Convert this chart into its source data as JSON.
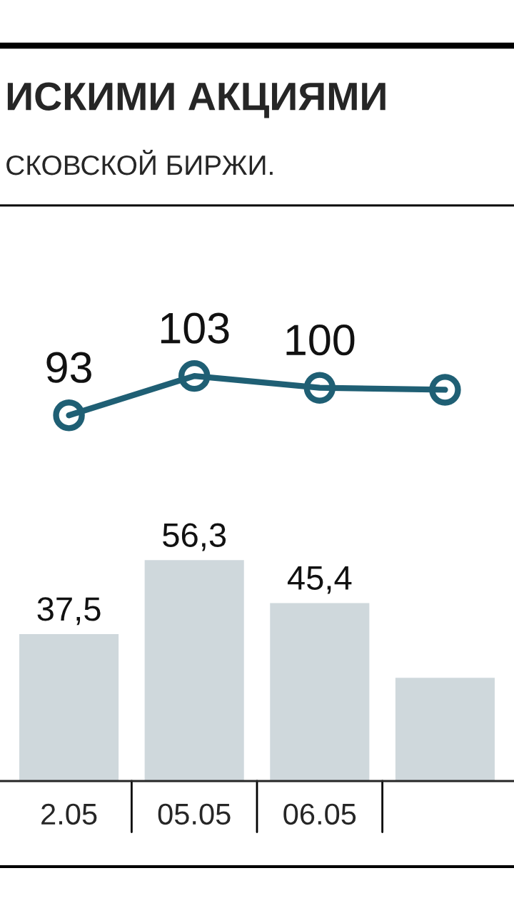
{
  "chart_data": {
    "type": "bar",
    "title": "ИСКИМИ АКЦИЯМИ",
    "subtitle": "СКОВСКОЙ БИРЖИ.",
    "categories": [
      "2.05",
      "05.05",
      "06.05",
      null
    ],
    "tick_labels": "x",
    "legend": false,
    "series": [
      {
        "color": "#cfd8dc",
        "values": [
          37.5,
          56.3,
          45.4,
          26.4
        ],
        "value_labels": [
          "37,5",
          "56,3",
          "45,4",
          null
        ]
      },
      {
        "type": "line",
        "color": "#1f5f74",
        "marker": "circle",
        "values": [
          93,
          103,
          100,
          99.5
        ],
        "value_labels": [
          "93",
          "103",
          "100",
          null
        ]
      }
    ]
  }
}
